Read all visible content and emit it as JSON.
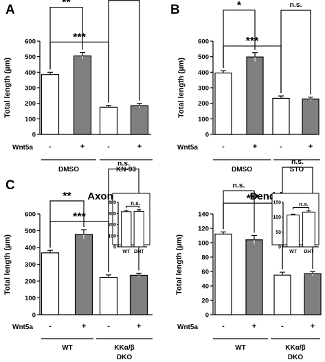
{
  "chart_data": [
    {
      "panel": "A",
      "type": "bar",
      "title": "",
      "ylabel": "Total length (µm)",
      "ylim": [
        0,
        600
      ],
      "yticks": [
        0,
        100,
        200,
        300,
        400,
        500,
        600
      ],
      "treatment_label": "Wnt5a",
      "treatment_marks": [
        "-",
        "+",
        "-",
        "+"
      ],
      "groups": [
        "DMSO",
        "KN-93"
      ],
      "colors": [
        "#ffffff",
        "#7f7f7f",
        "#ffffff",
        "#7f7f7f"
      ],
      "values": [
        385,
        505,
        175,
        185
      ],
      "errors": [
        15,
        22,
        12,
        15
      ],
      "significance": [
        {
          "from": 0,
          "to": 1,
          "label": "**"
        },
        {
          "from": 0,
          "to": 2,
          "label": "***"
        },
        {
          "from": 2,
          "to": 3,
          "label": "n.s."
        }
      ]
    },
    {
      "panel": "B",
      "type": "bar",
      "title": "",
      "ylabel": "Total length (µm)",
      "ylim": [
        0,
        600
      ],
      "yticks": [
        0,
        100,
        200,
        300,
        400,
        500,
        600
      ],
      "treatment_label": "Wnt5a",
      "treatment_marks": [
        "-",
        "+",
        "-",
        "+"
      ],
      "groups": [
        "DMSO",
        "STO"
      ],
      "colors": [
        "#ffffff",
        "#7f7f7f",
        "#ffffff",
        "#7f7f7f"
      ],
      "values": [
        395,
        498,
        232,
        228
      ],
      "errors": [
        15,
        28,
        15,
        12
      ],
      "significance": [
        {
          "from": 0,
          "to": 1,
          "label": "*"
        },
        {
          "from": 0,
          "to": 2,
          "label": "***"
        },
        {
          "from": 2,
          "to": 3,
          "label": "n.s."
        }
      ]
    },
    {
      "panel": "C",
      "type": "bar",
      "title": "Axon",
      "ylabel": "Total length (µm)",
      "ylim": [
        0,
        600
      ],
      "yticks": [
        0,
        100,
        200,
        300,
        400,
        500,
        600
      ],
      "treatment_label": "Wnt5a",
      "treatment_marks": [
        "-",
        "+",
        "-",
        "+"
      ],
      "groups": [
        "WT",
        "KKα/β",
        "DKO"
      ],
      "colors": [
        "#ffffff",
        "#7f7f7f",
        "#ffffff",
        "#7f7f7f"
      ],
      "values": [
        368,
        478,
        222,
        235
      ],
      "errors": [
        15,
        28,
        15,
        12
      ],
      "significance": [
        {
          "from": 0,
          "to": 1,
          "label": "**"
        },
        {
          "from": 0,
          "to": 2,
          "label": "***"
        },
        {
          "from": 2,
          "to": 3,
          "label": "n.s."
        }
      ],
      "inset": {
        "type": "bar",
        "categories": [
          "WT",
          "DHT"
        ],
        "values": [
          315,
          318
        ],
        "errors": [
          12,
          15
        ],
        "ylim": [
          0,
          400
        ],
        "yticks": [
          0,
          100,
          200,
          300,
          400
        ],
        "significance": "n.s."
      }
    },
    {
      "panel": "C",
      "type": "bar",
      "title": "Dendrite",
      "ylabel": "Total length (µm)",
      "ylim": [
        0,
        140
      ],
      "yticks": [
        0,
        20,
        40,
        60,
        80,
        100,
        120,
        140
      ],
      "treatment_label": "Wnt5a",
      "treatment_marks": [
        "-",
        "+",
        "-",
        "+"
      ],
      "groups": [
        "WT",
        "KKα/β",
        "DKO"
      ],
      "colors": [
        "#ffffff",
        "#7f7f7f",
        "#ffffff",
        "#7f7f7f"
      ],
      "values": [
        112,
        104,
        55,
        57
      ],
      "errors": [
        3,
        6,
        4,
        3
      ],
      "significance": [
        {
          "from": 0,
          "to": 1,
          "label": "n.s."
        },
        {
          "from": 0,
          "to": 2,
          "label": "***"
        },
        {
          "from": 2,
          "to": 3,
          "label": "n.s."
        }
      ],
      "inset": {
        "type": "bar",
        "categories": [
          "WT",
          "DHT"
        ],
        "values": [
          107,
          117
        ],
        "errors": [
          3,
          4
        ],
        "ylim": [
          0,
          150
        ],
        "yticks": [
          0,
          50,
          100,
          150
        ],
        "significance": "n.s."
      }
    }
  ]
}
